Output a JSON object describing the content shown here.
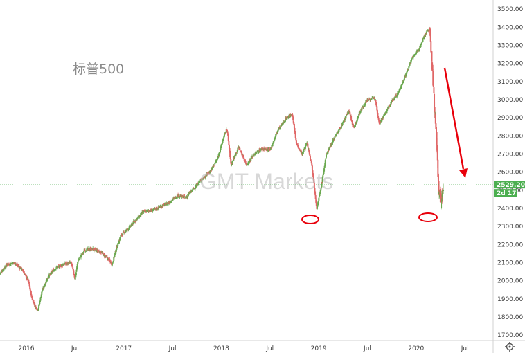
{
  "chart_data": {
    "type": "candlestick",
    "title": "标普500",
    "watermark": "GMT Markets",
    "y_ticks": [
      "3500.00",
      "3400.00",
      "3300.00",
      "3200.00",
      "3100.00",
      "3000.00",
      "2900.00",
      "2800.00",
      "2700.00",
      "2600.00",
      "2500.00",
      "2400.00",
      "2300.00",
      "2200.00",
      "2100.00",
      "2000.00",
      "1900.00",
      "1800.00",
      "1700.00"
    ],
    "x_ticks": [
      {
        "label": "2016",
        "t": 2016.0
      },
      {
        "label": "Jul",
        "t": 2016.5
      },
      {
        "label": "2017",
        "t": 2017.0
      },
      {
        "label": "Jul",
        "t": 2017.5
      },
      {
        "label": "2018",
        "t": 2018.0
      },
      {
        "label": "Jul",
        "t": 2018.5
      },
      {
        "label": "2019",
        "t": 2019.0
      },
      {
        "label": "Jul",
        "t": 2019.5
      },
      {
        "label": "2020",
        "t": 2020.0
      },
      {
        "label": "Jul",
        "t": 2020.5
      }
    ],
    "ylim": [
      1670,
      3550
    ],
    "xlim": [
      2015.73,
      2020.79
    ],
    "current_price": {
      "label": "2529.20",
      "value": 2529.2,
      "countdown": "2d 17h"
    },
    "up_color": "#6aa84f",
    "down_color": "#e06666",
    "series": [
      [
        2015.73,
        2040
      ],
      [
        2015.8,
        2090
      ],
      [
        2015.88,
        2100
      ],
      [
        2015.96,
        2060
      ],
      [
        2016.02,
        2000
      ],
      [
        2016.06,
        1900
      ],
      [
        2016.09,
        1860
      ],
      [
        2016.12,
        1840
      ],
      [
        2016.16,
        1940
      ],
      [
        2016.22,
        2020
      ],
      [
        2016.3,
        2070
      ],
      [
        2016.38,
        2090
      ],
      [
        2016.46,
        2100
      ],
      [
        2016.5,
        2010
      ],
      [
        2016.53,
        2110
      ],
      [
        2016.6,
        2170
      ],
      [
        2016.68,
        2175
      ],
      [
        2016.76,
        2160
      ],
      [
        2016.84,
        2120
      ],
      [
        2016.88,
        2090
      ],
      [
        2016.92,
        2170
      ],
      [
        2016.97,
        2250
      ],
      [
        2017.05,
        2290
      ],
      [
        2017.13,
        2340
      ],
      [
        2017.2,
        2380
      ],
      [
        2017.3,
        2390
      ],
      [
        2017.38,
        2410
      ],
      [
        2017.46,
        2430
      ],
      [
        2017.55,
        2470
      ],
      [
        2017.64,
        2460
      ],
      [
        2017.72,
        2510
      ],
      [
        2017.8,
        2560
      ],
      [
        2017.88,
        2600
      ],
      [
        2017.96,
        2670
      ],
      [
        2018.03,
        2800
      ],
      [
        2018.06,
        2840
      ],
      [
        2018.1,
        2640
      ],
      [
        2018.18,
        2740
      ],
      [
        2018.26,
        2640
      ],
      [
        2018.34,
        2700
      ],
      [
        2018.42,
        2730
      ],
      [
        2018.5,
        2720
      ],
      [
        2018.58,
        2830
      ],
      [
        2018.67,
        2900
      ],
      [
        2018.73,
        2920
      ],
      [
        2018.77,
        2760
      ],
      [
        2018.83,
        2700
      ],
      [
        2018.88,
        2760
      ],
      [
        2018.93,
        2640
      ],
      [
        2018.98,
        2400
      ],
      [
        2019.02,
        2500
      ],
      [
        2019.08,
        2700
      ],
      [
        2019.16,
        2790
      ],
      [
        2019.24,
        2860
      ],
      [
        2019.31,
        2940
      ],
      [
        2019.36,
        2840
      ],
      [
        2019.42,
        2930
      ],
      [
        2019.5,
        3000
      ],
      [
        2019.58,
        3010
      ],
      [
        2019.62,
        2870
      ],
      [
        2019.68,
        2920
      ],
      [
        2019.75,
        2990
      ],
      [
        2019.82,
        3040
      ],
      [
        2019.88,
        3120
      ],
      [
        2019.96,
        3230
      ],
      [
        2020.03,
        3280
      ],
      [
        2020.1,
        3370
      ],
      [
        2020.14,
        3390
      ],
      [
        2020.16,
        3220
      ],
      [
        2020.19,
        2950
      ],
      [
        2020.21,
        2800
      ],
      [
        2020.23,
        2500
      ],
      [
        2020.26,
        2440
      ],
      [
        2020.28,
        2530
      ]
    ]
  }
}
